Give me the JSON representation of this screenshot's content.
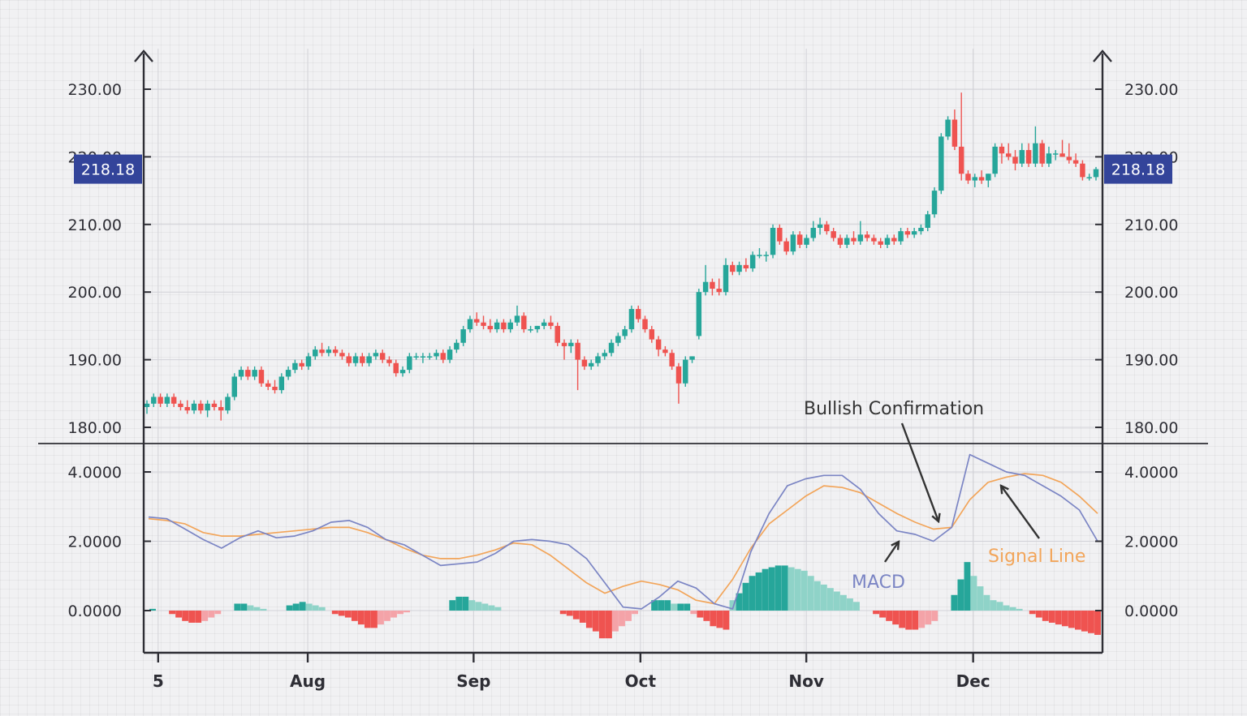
{
  "colors": {
    "up": "#26a69a",
    "down": "#ef5350",
    "up_light": "#8fd3c8",
    "down_light": "#f4a3a8",
    "macd": "#7b85c4",
    "signal": "#f2a55a",
    "axis": "#2e2e35",
    "grid": "#d2d2d8",
    "badge": "#33449a",
    "annotation": "#333333"
  },
  "chart_data": {
    "type": "candlestick+macd",
    "price_panel": {
      "y_ticks": [
        "230.00",
        "220.00",
        "210.00",
        "200.00",
        "190.00",
        "180.00"
      ],
      "ylim": [
        177,
        233
      ],
      "current_price": "218.18",
      "current_price_value": 218.18,
      "candles": [
        [
          183,
          184,
          182,
          183.5
        ],
        [
          183.5,
          185,
          183,
          184.5
        ],
        [
          184.5,
          185,
          183,
          183.5
        ],
        [
          183.5,
          185,
          183,
          184.5
        ],
        [
          184.5,
          185,
          183,
          183.5
        ],
        [
          183.5,
          184,
          182.5,
          183
        ],
        [
          183,
          184,
          182,
          182.5
        ],
        [
          182.5,
          184,
          182,
          183.5
        ],
        [
          183.5,
          184,
          182,
          182.5
        ],
        [
          182.5,
          184,
          181.5,
          183.5
        ],
        [
          183.5,
          184,
          182.5,
          183
        ],
        [
          183,
          184,
          181,
          182.5
        ],
        [
          182.5,
          185,
          182,
          184.5
        ],
        [
          184.5,
          188,
          184,
          187.5
        ],
        [
          187.5,
          189,
          187,
          188.5
        ],
        [
          188.5,
          189,
          187,
          187.5
        ],
        [
          187.5,
          189,
          187,
          188.5
        ],
        [
          188.5,
          189,
          186,
          186.5
        ],
        [
          186.5,
          187,
          185.5,
          186
        ],
        [
          186,
          187,
          185,
          185.5
        ],
        [
          185.5,
          188,
          185,
          187.5
        ],
        [
          187.5,
          189,
          187,
          188.5
        ],
        [
          188.5,
          190,
          188,
          189.5
        ],
        [
          189.5,
          190,
          188.5,
          189
        ],
        [
          189,
          191,
          188.5,
          190.5
        ],
        [
          190.5,
          192,
          190,
          191.5
        ],
        [
          191.5,
          192.5,
          190.5,
          191
        ],
        [
          191,
          192,
          190.5,
          191.5
        ],
        [
          191.5,
          192,
          190.5,
          191
        ],
        [
          191,
          191.5,
          190,
          190.5
        ],
        [
          190.5,
          191,
          189,
          189.5
        ],
        [
          189.5,
          191,
          189,
          190.5
        ],
        [
          190.5,
          191,
          189,
          189.5
        ],
        [
          189.5,
          191,
          189,
          190.5
        ],
        [
          190.5,
          191.5,
          190,
          191
        ],
        [
          191,
          191.5,
          189.5,
          190
        ],
        [
          190,
          190.5,
          189,
          189.5
        ],
        [
          189.5,
          190,
          187.5,
          188
        ],
        [
          188,
          189,
          187.5,
          188.5
        ],
        [
          188.5,
          191,
          188,
          190.5
        ],
        [
          190.5,
          191,
          190,
          190.5
        ],
        [
          190.5,
          191,
          189.5,
          190.5
        ],
        [
          190.5,
          191,
          190,
          190.5
        ],
        [
          190.5,
          191.5,
          190,
          191
        ],
        [
          191,
          191.5,
          189.5,
          190
        ],
        [
          190,
          192,
          189.5,
          191.5
        ],
        [
          191.5,
          193,
          191,
          192.5
        ],
        [
          192.5,
          195,
          192,
          194.5
        ],
        [
          194.5,
          196.5,
          194,
          196
        ],
        [
          196,
          197,
          195,
          195.5
        ],
        [
          195.5,
          196.5,
          194.5,
          195
        ],
        [
          195,
          196,
          194,
          194.5
        ],
        [
          194.5,
          196,
          194,
          195.5
        ],
        [
          195.5,
          196,
          194,
          194.5
        ],
        [
          194.5,
          196,
          194,
          195.5
        ],
        [
          195.5,
          198,
          195,
          196.5
        ],
        [
          196.5,
          197,
          194,
          194.5
        ],
        [
          194.5,
          195,
          194,
          194.5
        ],
        [
          194.5,
          195,
          194,
          195
        ],
        [
          195,
          196,
          194.5,
          195.5
        ],
        [
          195.5,
          196.5,
          194.5,
          195
        ],
        [
          195,
          195.5,
          192,
          192.5
        ],
        [
          192.5,
          193,
          190,
          192
        ],
        [
          192,
          193,
          191,
          192.5
        ],
        [
          192.5,
          193,
          185.5,
          190
        ],
        [
          190,
          190.5,
          188.5,
          189
        ],
        [
          189,
          190,
          188.5,
          189.5
        ],
        [
          189.5,
          191,
          189,
          190.5
        ],
        [
          190.5,
          191.5,
          190,
          191
        ],
        [
          191,
          193,
          190.5,
          192.5
        ],
        [
          192.5,
          194,
          192,
          193.5
        ],
        [
          193.5,
          195,
          193,
          194.5
        ],
        [
          194.5,
          198,
          194,
          197.5
        ],
        [
          197.5,
          198,
          195.5,
          196
        ],
        [
          196,
          196.5,
          194,
          194.5
        ],
        [
          194.5,
          195,
          192.5,
          193
        ],
        [
          193,
          193.5,
          190.5,
          191.5
        ],
        [
          191.5,
          192,
          190.5,
          191
        ],
        [
          191,
          191.5,
          188.5,
          189
        ],
        [
          189,
          189.5,
          183.5,
          186.5
        ],
        [
          186.5,
          190.5,
          186,
          190
        ],
        [
          190,
          190.5,
          189.5,
          190.5
        ],
        [
          193.5,
          200.5,
          193,
          200
        ],
        [
          200,
          204,
          199.5,
          201.5
        ],
        [
          201.5,
          202,
          199.5,
          200.5
        ],
        [
          200.5,
          202,
          199.5,
          200
        ],
        [
          200,
          205,
          199.5,
          204
        ],
        [
          204,
          204.5,
          202.5,
          203
        ],
        [
          203,
          204.5,
          202.5,
          204
        ],
        [
          204,
          205,
          203,
          203.5
        ],
        [
          203.5,
          206,
          203,
          205.5
        ],
        [
          205.5,
          206.5,
          205,
          205.5
        ],
        [
          205.5,
          206,
          204.5,
          205.5
        ],
        [
          205.5,
          210,
          205,
          209.5
        ],
        [
          209.5,
          210,
          207,
          207.5
        ],
        [
          207.5,
          208,
          205.5,
          206
        ],
        [
          206,
          209,
          205.5,
          208.5
        ],
        [
          208.5,
          209,
          206.5,
          207
        ],
        [
          207,
          208.5,
          206.5,
          208
        ],
        [
          208,
          210.5,
          207.5,
          209.5
        ],
        [
          209.5,
          211,
          208.5,
          210
        ],
        [
          210,
          210.5,
          208.5,
          209
        ],
        [
          209,
          209.5,
          207.5,
          208
        ],
        [
          208,
          208.5,
          206.5,
          207
        ],
        [
          207,
          208.5,
          206.5,
          208
        ],
        [
          208,
          209,
          207,
          207.5
        ],
        [
          207.5,
          210.5,
          207,
          208.5
        ],
        [
          208.5,
          209,
          207.5,
          208
        ],
        [
          208,
          208.5,
          207,
          207.5
        ],
        [
          207.5,
          208,
          206.5,
          207
        ],
        [
          207,
          208.5,
          206.5,
          208
        ],
        [
          208,
          208.5,
          207,
          207.5
        ],
        [
          207.5,
          209.5,
          207,
          209
        ],
        [
          209,
          209.5,
          208,
          208.5
        ],
        [
          208.5,
          209.5,
          208,
          209
        ],
        [
          209,
          210,
          208.5,
          209.5
        ],
        [
          209.5,
          212,
          209,
          211.5
        ],
        [
          211.5,
          215.5,
          211,
          215
        ],
        [
          215,
          223.5,
          214.5,
          223
        ],
        [
          223,
          226,
          222.5,
          225.5
        ],
        [
          225.5,
          227,
          221,
          221.5
        ],
        [
          221.5,
          229.5,
          216.5,
          217.5
        ],
        [
          217.5,
          218,
          216,
          216.5
        ],
        [
          216.5,
          217.5,
          215.5,
          217
        ],
        [
          217,
          218,
          216,
          216.5
        ],
        [
          216.5,
          217.5,
          215.5,
          217.5
        ],
        [
          217.5,
          222,
          217,
          221.5
        ],
        [
          221.5,
          222,
          219,
          220.5
        ],
        [
          220.5,
          222,
          219.5,
          220
        ],
        [
          220,
          221,
          218,
          219
        ],
        [
          219,
          222,
          218.5,
          221
        ],
        [
          221,
          222,
          218.5,
          219
        ],
        [
          219,
          224.5,
          218.5,
          222
        ],
        [
          222,
          222.5,
          218.5,
          219
        ],
        [
          219,
          221.5,
          218.5,
          220.5
        ],
        [
          220.5,
          221,
          219.5,
          220.5
        ],
        [
          220.5,
          222.5,
          220,
          220
        ],
        [
          220,
          222,
          219,
          219.5
        ],
        [
          219.5,
          220.5,
          218.5,
          219
        ],
        [
          219,
          219.5,
          216.5,
          217
        ],
        [
          217,
          217.5,
          216.5,
          217
        ],
        [
          217,
          218.5,
          216.5,
          218.18
        ]
      ]
    },
    "macd_panel": {
      "y_ticks": [
        "4.0000",
        "2.0000",
        "0.0000"
      ],
      "ylim": [
        -1.2,
        5.2
      ],
      "macd_line": [
        2.7,
        2.65,
        2.35,
        2.05,
        1.8,
        2.1,
        2.3,
        2.1,
        2.15,
        2.3,
        2.55,
        2.6,
        2.4,
        2.05,
        1.9,
        1.6,
        1.3,
        1.35,
        1.4,
        1.65,
        2.0,
        2.05,
        2.0,
        1.9,
        1.5,
        0.8,
        0.1,
        0.05,
        0.4,
        0.85,
        0.65,
        0.2,
        0.05,
        1.7,
        2.8,
        3.6,
        3.8,
        3.9,
        3.9,
        3.5,
        2.8,
        2.3,
        2.2,
        2.0,
        2.4,
        4.5,
        4.25,
        4.0,
        3.9,
        3.6,
        3.3,
        2.9,
        2.0
      ],
      "signal_line": [
        2.65,
        2.6,
        2.5,
        2.25,
        2.15,
        2.15,
        2.2,
        2.25,
        2.3,
        2.35,
        2.4,
        2.4,
        2.25,
        2.05,
        1.8,
        1.6,
        1.5,
        1.5,
        1.6,
        1.75,
        1.95,
        1.9,
        1.6,
        1.2,
        0.8,
        0.5,
        0.7,
        0.85,
        0.75,
        0.6,
        0.3,
        0.2,
        0.9,
        1.8,
        2.5,
        2.9,
        3.3,
        3.6,
        3.55,
        3.4,
        3.1,
        2.8,
        2.55,
        2.35,
        2.4,
        3.2,
        3.7,
        3.85,
        3.95,
        3.9,
        3.7,
        3.3,
        2.8
      ],
      "histogram": [
        0.05,
        0,
        0,
        -0.1,
        -0.2,
        -0.3,
        -0.35,
        -0.35,
        -0.3,
        -0.2,
        -0.1,
        0,
        0,
        0.2,
        0.2,
        0.15,
        0.1,
        0.05,
        0,
        0,
        0,
        0.15,
        0.2,
        0.25,
        0.2,
        0.15,
        0.1,
        0,
        -0.1,
        -0.15,
        -0.2,
        -0.3,
        -0.4,
        -0.5,
        -0.5,
        -0.4,
        -0.3,
        -0.2,
        -0.1,
        -0.05,
        0,
        0,
        0,
        0,
        0,
        0,
        0.3,
        0.4,
        0.4,
        0.3,
        0.25,
        0.2,
        0.15,
        0.1,
        0,
        0,
        0,
        0,
        0,
        0,
        0,
        0,
        0,
        -0.1,
        -0.15,
        -0.25,
        -0.35,
        -0.5,
        -0.6,
        -0.8,
        -0.8,
        -0.6,
        -0.45,
        -0.3,
        -0.1,
        0,
        0,
        0.3,
        0.3,
        0.3,
        0.2,
        0.2,
        0.2,
        -0.1,
        -0.2,
        -0.3,
        -0.45,
        -0.5,
        -0.55,
        0.3,
        0.5,
        0.8,
        1.0,
        1.1,
        1.2,
        1.25,
        1.3,
        1.3,
        1.25,
        1.2,
        1.15,
        1.0,
        0.85,
        0.75,
        0.65,
        0.55,
        0.45,
        0.35,
        0.25,
        0,
        0,
        -0.1,
        -0.2,
        -0.3,
        -0.4,
        -0.5,
        -0.55,
        -0.55,
        -0.5,
        -0.4,
        -0.3,
        0,
        0,
        0.45,
        0.9,
        1.4,
        1.0,
        0.7,
        0.45,
        0.3,
        0.25,
        0.15,
        0.1,
        0.05,
        0,
        -0.1,
        -0.2,
        -0.3,
        -0.35,
        -0.4,
        -0.45,
        -0.5,
        -0.55,
        -0.6,
        -0.65,
        -0.7
      ]
    },
    "x_ticks": [
      {
        "label": "5",
        "pos": 0.01
      },
      {
        "label": "Aug",
        "pos": 0.166
      },
      {
        "label": "Sep",
        "pos": 0.339
      },
      {
        "label": "Oct",
        "pos": 0.513
      },
      {
        "label": "Nov",
        "pos": 0.686
      },
      {
        "label": "Dec",
        "pos": 0.86
      }
    ],
    "annotations": {
      "bullish": "Bullish Confirmation",
      "macd": "MACD",
      "signal": "Signal Line"
    }
  }
}
